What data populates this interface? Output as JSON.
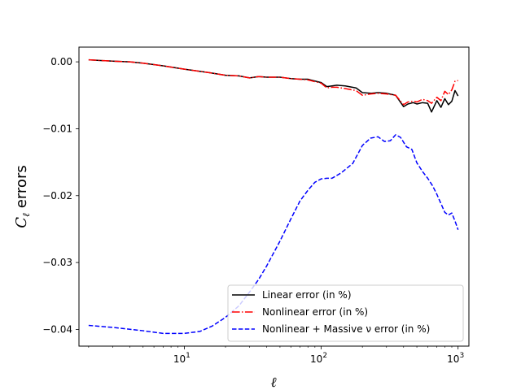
{
  "chart_data": {
    "type": "line",
    "xscale": "log",
    "xlim": [
      1.7,
      1200
    ],
    "ylim": [
      -0.0425,
      0.0022
    ],
    "xlabel": "ℓ",
    "ylabel_main": "C",
    "ylabel_sub": "ℓ",
    "ylabel_rest": " errors",
    "grid": false,
    "legend_location": "lower right",
    "x_ticks": [
      {
        "value": 10,
        "base": "10",
        "exp": "1"
      },
      {
        "value": 100,
        "base": "10",
        "exp": "2"
      },
      {
        "value": 1000,
        "base": "10",
        "exp": "3"
      }
    ],
    "y_ticks": [
      {
        "value": 0.0,
        "label": "0.00"
      },
      {
        "value": -0.01,
        "label": "−0.01"
      },
      {
        "value": -0.02,
        "label": "−0.02"
      },
      {
        "value": -0.03,
        "label": "−0.03"
      },
      {
        "value": -0.04,
        "label": "−0.04"
      }
    ],
    "series": [
      {
        "name": "Linear error (in %)",
        "color": "#000000",
        "dash": "solid",
        "x": [
          2,
          3,
          4,
          5,
          7,
          10,
          15,
          20,
          25,
          30,
          35,
          40,
          50,
          60,
          70,
          80,
          100,
          110,
          120,
          130,
          150,
          180,
          200,
          230,
          260,
          300,
          350,
          400,
          430,
          470,
          500,
          550,
          600,
          640,
          700,
          750,
          800,
          850,
          900,
          950,
          1000
        ],
        "y": [
          0.0003,
          0.0001,
          0.0,
          -0.0002,
          -0.0006,
          -0.0011,
          -0.0016,
          -0.002,
          -0.0021,
          -0.0024,
          -0.0022,
          -0.0023,
          -0.0023,
          -0.0025,
          -0.0026,
          -0.0026,
          -0.0031,
          -0.0037,
          -0.0036,
          -0.0035,
          -0.0036,
          -0.0039,
          -0.0046,
          -0.0047,
          -0.0046,
          -0.0047,
          -0.005,
          -0.0067,
          -0.0063,
          -0.0061,
          -0.0063,
          -0.0061,
          -0.0062,
          -0.0075,
          -0.0058,
          -0.0068,
          -0.0055,
          -0.0064,
          -0.0059,
          -0.0043,
          -0.0051
        ]
      },
      {
        "name": "Nonlinear error (in %)",
        "color": "#ff0000",
        "dash": "dashdot",
        "x": [
          2,
          3,
          4,
          5,
          7,
          10,
          15,
          20,
          25,
          30,
          35,
          40,
          50,
          60,
          70,
          80,
          100,
          110,
          120,
          130,
          150,
          180,
          200,
          230,
          260,
          300,
          350,
          400,
          430,
          470,
          500,
          550,
          600,
          640,
          700,
          750,
          800,
          850,
          900,
          950,
          1000
        ],
        "y": [
          0.0003,
          0.0001,
          0.0,
          -0.0002,
          -0.0006,
          -0.0011,
          -0.0016,
          -0.002,
          -0.0021,
          -0.0024,
          -0.0022,
          -0.0023,
          -0.0023,
          -0.0025,
          -0.0026,
          -0.0027,
          -0.0032,
          -0.0039,
          -0.0038,
          -0.0038,
          -0.004,
          -0.0043,
          -0.005,
          -0.0048,
          -0.0047,
          -0.0048,
          -0.005,
          -0.0064,
          -0.006,
          -0.0059,
          -0.006,
          -0.0056,
          -0.0058,
          -0.0062,
          -0.0053,
          -0.0058,
          -0.0044,
          -0.0049,
          -0.0042,
          -0.0029,
          -0.0028
        ]
      },
      {
        "name": "Nonlinear + Massive ν error (in %)",
        "color": "#0000ff",
        "dash": "dashed",
        "x": [
          2,
          3,
          5,
          7,
          10,
          13,
          16,
          20,
          25,
          30,
          35,
          40,
          50,
          60,
          70,
          80,
          90,
          100,
          110,
          120,
          140,
          170,
          200,
          230,
          260,
          290,
          320,
          350,
          380,
          420,
          460,
          500,
          550,
          600,
          650,
          700,
          750,
          800,
          850,
          900,
          950,
          1000
        ],
        "y": [
          -0.0394,
          -0.0397,
          -0.0402,
          -0.0406,
          -0.0406,
          -0.0403,
          -0.0395,
          -0.0382,
          -0.0365,
          -0.0344,
          -0.0325,
          -0.0305,
          -0.0268,
          -0.0235,
          -0.0208,
          -0.0192,
          -0.018,
          -0.0175,
          -0.0174,
          -0.0174,
          -0.0166,
          -0.0152,
          -0.0125,
          -0.0114,
          -0.0112,
          -0.0119,
          -0.0118,
          -0.0109,
          -0.0113,
          -0.0127,
          -0.0131,
          -0.0151,
          -0.0164,
          -0.0174,
          -0.0185,
          -0.0198,
          -0.0212,
          -0.0225,
          -0.0229,
          -0.0226,
          -0.0238,
          -0.0251
        ]
      }
    ]
  }
}
